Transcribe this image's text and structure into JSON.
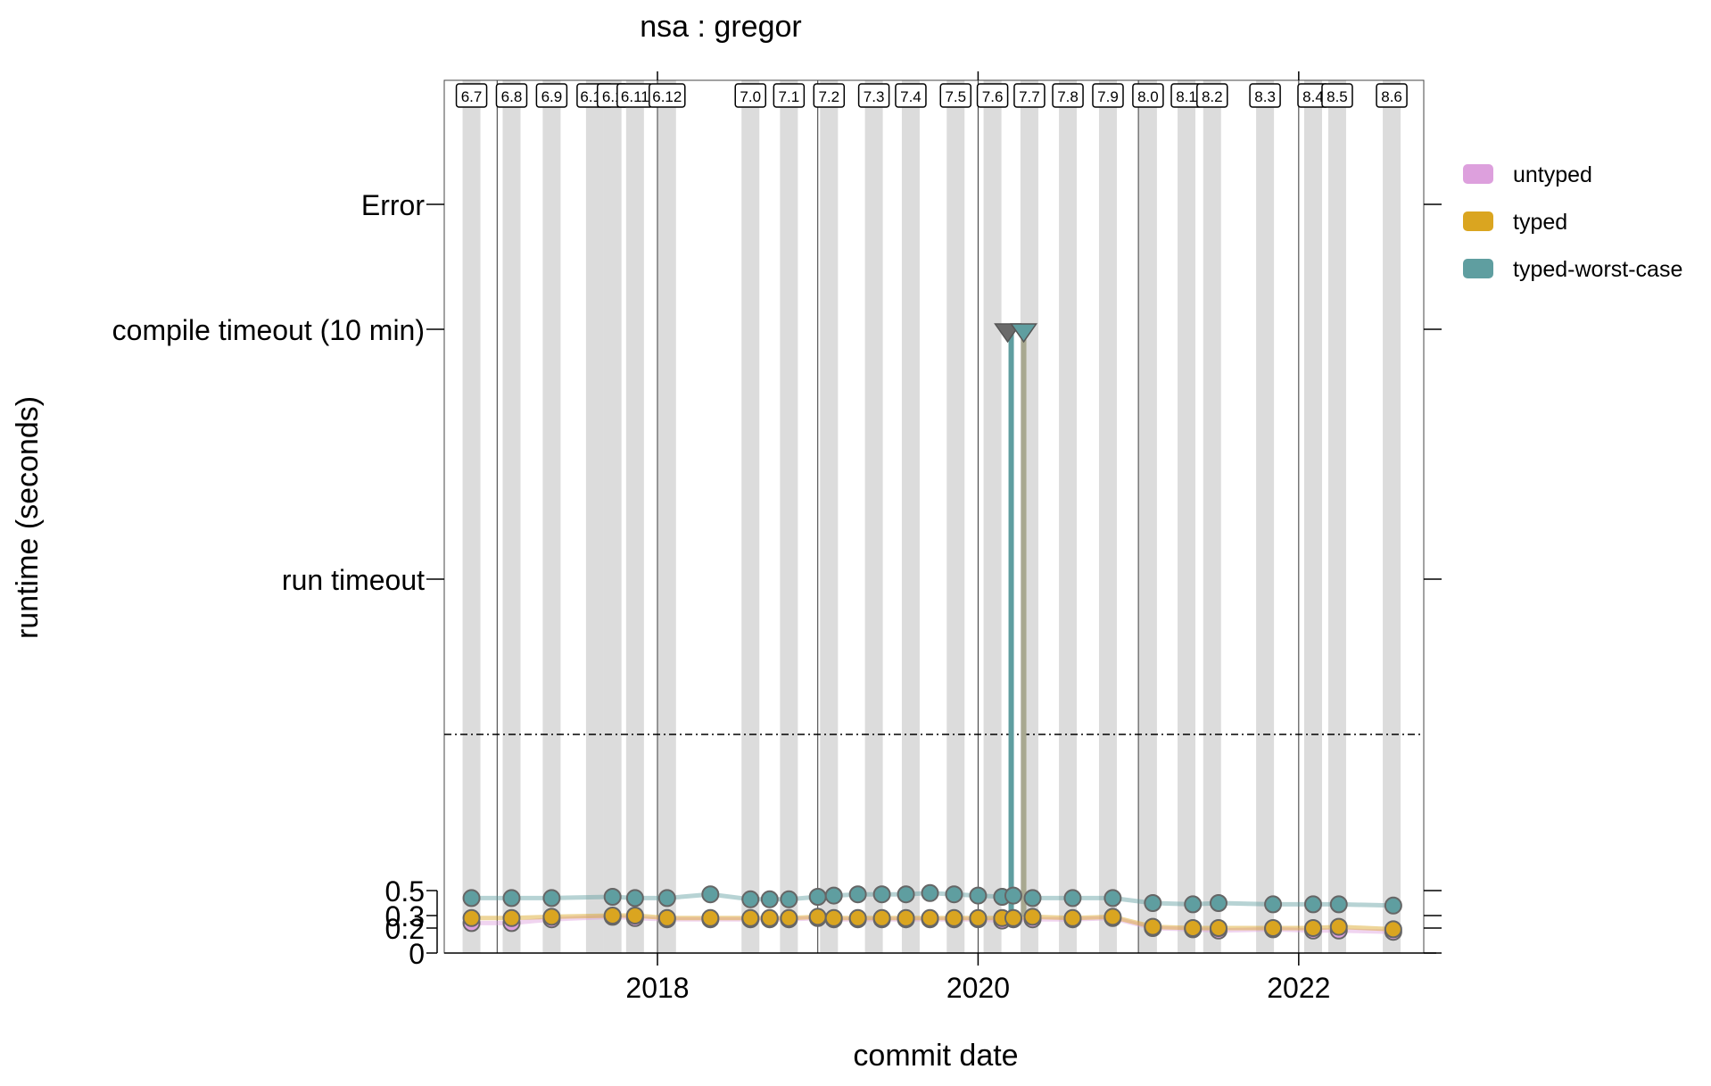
{
  "chart_data": {
    "type": "scatter",
    "title": "nsa : gregor",
    "xlabel": "commit date",
    "ylabel": "runtime (seconds)",
    "x_ticks": [
      "2018",
      "2020",
      "2022"
    ],
    "x_tick_values": [
      2018.0,
      2020.0,
      2022.0
    ],
    "xlim": [
      2016.67,
      2022.78
    ],
    "y_numeric_ticks": [
      "0",
      "0.2",
      "0.3",
      "0.5"
    ],
    "y_numeric_tick_values": [
      0,
      0.2,
      0.3,
      0.5
    ],
    "y_category_ticks": [
      "run timeout",
      "compile timeout (10 min)",
      "Error"
    ],
    "threshold_line": "dashed",
    "release_years": [
      2016.84,
      2017.09,
      2017.34,
      2017.61,
      2017.72,
      2017.86,
      2018.06,
      2018.58,
      2018.82,
      2019.07,
      2019.35,
      2019.58,
      2019.86,
      2020.09,
      2020.32,
      2020.56,
      2020.81,
      2021.06,
      2021.3,
      2021.46,
      2021.79,
      2022.09,
      2022.24,
      2022.58
    ],
    "release_labels": [
      "6.7",
      "6.8",
      "6.9",
      "6.10",
      "6.1",
      "6.11",
      "6.12",
      "7.0",
      "7.1",
      "7.2",
      "7.3",
      "7.4",
      "7.5",
      "7.6",
      "7.7",
      "7.8",
      "7.9",
      "8.0",
      "8.1",
      "8.2",
      "8.3",
      "8.4",
      "8.5",
      "8.6"
    ],
    "legend": {
      "placement": "top-right",
      "items": [
        "untyped",
        "typed",
        "typed-worst-case"
      ]
    },
    "colors": {
      "untyped": "#dda0dd",
      "typed": "#daa520",
      "typed-worst-case": "#5f9ea0",
      "point_outline": "#666666",
      "release_band": "#dcdcdc"
    },
    "timeout_point": {
      "x": 2020.24,
      "level": "compile timeout (10 min)",
      "marker": "triangle-down"
    },
    "series": [
      {
        "name": "untyped",
        "x": [
          2016.84,
          2017.09,
          2017.34,
          2017.72,
          2017.86,
          2018.06,
          2018.33,
          2018.58,
          2018.7,
          2018.82,
          2019.0,
          2019.1,
          2019.25,
          2019.4,
          2019.55,
          2019.7,
          2019.85,
          2020.0,
          2020.15,
          2020.22,
          2020.34,
          2020.59,
          2020.84,
          2021.09,
          2021.34,
          2021.5,
          2021.84,
          2022.09,
          2022.25,
          2022.59
        ],
        "y": [
          0.24,
          0.24,
          0.27,
          0.29,
          0.28,
          0.27,
          0.27,
          0.27,
          0.27,
          0.27,
          0.28,
          0.27,
          0.27,
          0.27,
          0.27,
          0.27,
          0.27,
          0.27,
          0.26,
          0.27,
          0.27,
          0.27,
          0.28,
          0.2,
          0.19,
          0.18,
          0.19,
          0.18,
          0.18,
          0.17
        ]
      },
      {
        "name": "typed",
        "x": [
          2016.84,
          2017.09,
          2017.34,
          2017.72,
          2017.86,
          2018.06,
          2018.33,
          2018.58,
          2018.7,
          2018.82,
          2019.0,
          2019.1,
          2019.25,
          2019.4,
          2019.55,
          2019.7,
          2019.85,
          2020.0,
          2020.15,
          2020.22,
          2020.34,
          2020.59,
          2020.84,
          2021.09,
          2021.34,
          2021.5,
          2021.84,
          2022.09,
          2022.25,
          2022.59
        ],
        "y": [
          0.28,
          0.28,
          0.29,
          0.3,
          0.3,
          0.28,
          0.28,
          0.28,
          0.28,
          0.28,
          0.29,
          0.28,
          0.28,
          0.28,
          0.28,
          0.28,
          0.28,
          0.28,
          0.28,
          0.28,
          0.29,
          0.28,
          0.29,
          0.21,
          0.2,
          0.2,
          0.2,
          0.2,
          0.21,
          0.19
        ]
      },
      {
        "name": "typed-worst-case",
        "x": [
          2016.84,
          2017.09,
          2017.34,
          2017.72,
          2017.86,
          2018.06,
          2018.33,
          2018.58,
          2018.7,
          2018.82,
          2019.0,
          2019.1,
          2019.25,
          2019.4,
          2019.55,
          2019.7,
          2019.85,
          2020.0,
          2020.15,
          2020.22,
          2020.34,
          2020.59,
          2020.84,
          2021.09,
          2021.34,
          2021.5,
          2021.84,
          2022.09,
          2022.25,
          2022.59
        ],
        "y": [
          0.44,
          0.44,
          0.44,
          0.45,
          0.44,
          0.44,
          0.47,
          0.43,
          0.43,
          0.43,
          0.45,
          0.46,
          0.47,
          0.47,
          0.47,
          0.48,
          0.47,
          0.46,
          0.45,
          0.46,
          0.44,
          0.44,
          0.44,
          0.4,
          0.39,
          0.4,
          0.39,
          0.39,
          0.39,
          0.38
        ]
      }
    ]
  }
}
